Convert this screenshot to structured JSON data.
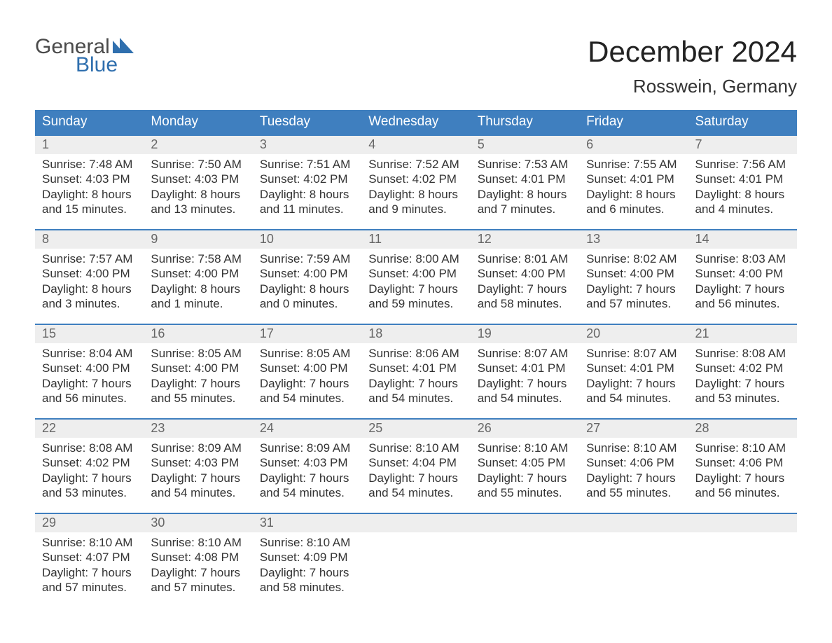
{
  "brand": {
    "word1": "General",
    "word2": "Blue"
  },
  "title": "December 2024",
  "location": "Rosswein, Germany",
  "colors": {
    "header_bg": "#3f7fbf",
    "header_text": "#ffffff",
    "daynum_bg": "#eeeeee",
    "daynum_border": "#3f7fbf",
    "daynum_text": "#666666",
    "body_text": "#333333",
    "page_bg": "#ffffff",
    "brand_blue": "#2f6fae",
    "brand_gray": "#4a4a4a"
  },
  "dayHeaders": [
    "Sunday",
    "Monday",
    "Tuesday",
    "Wednesday",
    "Thursday",
    "Friday",
    "Saturday"
  ],
  "weeks": [
    [
      {
        "num": "1",
        "sunrise": "Sunrise: 7:48 AM",
        "sunset": "Sunset: 4:03 PM",
        "daylight": "Daylight: 8 hours and 15 minutes."
      },
      {
        "num": "2",
        "sunrise": "Sunrise: 7:50 AM",
        "sunset": "Sunset: 4:03 PM",
        "daylight": "Daylight: 8 hours and 13 minutes."
      },
      {
        "num": "3",
        "sunrise": "Sunrise: 7:51 AM",
        "sunset": "Sunset: 4:02 PM",
        "daylight": "Daylight: 8 hours and 11 minutes."
      },
      {
        "num": "4",
        "sunrise": "Sunrise: 7:52 AM",
        "sunset": "Sunset: 4:02 PM",
        "daylight": "Daylight: 8 hours and 9 minutes."
      },
      {
        "num": "5",
        "sunrise": "Sunrise: 7:53 AM",
        "sunset": "Sunset: 4:01 PM",
        "daylight": "Daylight: 8 hours and 7 minutes."
      },
      {
        "num": "6",
        "sunrise": "Sunrise: 7:55 AM",
        "sunset": "Sunset: 4:01 PM",
        "daylight": "Daylight: 8 hours and 6 minutes."
      },
      {
        "num": "7",
        "sunrise": "Sunrise: 7:56 AM",
        "sunset": "Sunset: 4:01 PM",
        "daylight": "Daylight: 8 hours and 4 minutes."
      }
    ],
    [
      {
        "num": "8",
        "sunrise": "Sunrise: 7:57 AM",
        "sunset": "Sunset: 4:00 PM",
        "daylight": "Daylight: 8 hours and 3 minutes."
      },
      {
        "num": "9",
        "sunrise": "Sunrise: 7:58 AM",
        "sunset": "Sunset: 4:00 PM",
        "daylight": "Daylight: 8 hours and 1 minute."
      },
      {
        "num": "10",
        "sunrise": "Sunrise: 7:59 AM",
        "sunset": "Sunset: 4:00 PM",
        "daylight": "Daylight: 8 hours and 0 minutes."
      },
      {
        "num": "11",
        "sunrise": "Sunrise: 8:00 AM",
        "sunset": "Sunset: 4:00 PM",
        "daylight": "Daylight: 7 hours and 59 minutes."
      },
      {
        "num": "12",
        "sunrise": "Sunrise: 8:01 AM",
        "sunset": "Sunset: 4:00 PM",
        "daylight": "Daylight: 7 hours and 58 minutes."
      },
      {
        "num": "13",
        "sunrise": "Sunrise: 8:02 AM",
        "sunset": "Sunset: 4:00 PM",
        "daylight": "Daylight: 7 hours and 57 minutes."
      },
      {
        "num": "14",
        "sunrise": "Sunrise: 8:03 AM",
        "sunset": "Sunset: 4:00 PM",
        "daylight": "Daylight: 7 hours and 56 minutes."
      }
    ],
    [
      {
        "num": "15",
        "sunrise": "Sunrise: 8:04 AM",
        "sunset": "Sunset: 4:00 PM",
        "daylight": "Daylight: 7 hours and 56 minutes."
      },
      {
        "num": "16",
        "sunrise": "Sunrise: 8:05 AM",
        "sunset": "Sunset: 4:00 PM",
        "daylight": "Daylight: 7 hours and 55 minutes."
      },
      {
        "num": "17",
        "sunrise": "Sunrise: 8:05 AM",
        "sunset": "Sunset: 4:00 PM",
        "daylight": "Daylight: 7 hours and 54 minutes."
      },
      {
        "num": "18",
        "sunrise": "Sunrise: 8:06 AM",
        "sunset": "Sunset: 4:01 PM",
        "daylight": "Daylight: 7 hours and 54 minutes."
      },
      {
        "num": "19",
        "sunrise": "Sunrise: 8:07 AM",
        "sunset": "Sunset: 4:01 PM",
        "daylight": "Daylight: 7 hours and 54 minutes."
      },
      {
        "num": "20",
        "sunrise": "Sunrise: 8:07 AM",
        "sunset": "Sunset: 4:01 PM",
        "daylight": "Daylight: 7 hours and 54 minutes."
      },
      {
        "num": "21",
        "sunrise": "Sunrise: 8:08 AM",
        "sunset": "Sunset: 4:02 PM",
        "daylight": "Daylight: 7 hours and 53 minutes."
      }
    ],
    [
      {
        "num": "22",
        "sunrise": "Sunrise: 8:08 AM",
        "sunset": "Sunset: 4:02 PM",
        "daylight": "Daylight: 7 hours and 53 minutes."
      },
      {
        "num": "23",
        "sunrise": "Sunrise: 8:09 AM",
        "sunset": "Sunset: 4:03 PM",
        "daylight": "Daylight: 7 hours and 54 minutes."
      },
      {
        "num": "24",
        "sunrise": "Sunrise: 8:09 AM",
        "sunset": "Sunset: 4:03 PM",
        "daylight": "Daylight: 7 hours and 54 minutes."
      },
      {
        "num": "25",
        "sunrise": "Sunrise: 8:10 AM",
        "sunset": "Sunset: 4:04 PM",
        "daylight": "Daylight: 7 hours and 54 minutes."
      },
      {
        "num": "26",
        "sunrise": "Sunrise: 8:10 AM",
        "sunset": "Sunset: 4:05 PM",
        "daylight": "Daylight: 7 hours and 55 minutes."
      },
      {
        "num": "27",
        "sunrise": "Sunrise: 8:10 AM",
        "sunset": "Sunset: 4:06 PM",
        "daylight": "Daylight: 7 hours and 55 minutes."
      },
      {
        "num": "28",
        "sunrise": "Sunrise: 8:10 AM",
        "sunset": "Sunset: 4:06 PM",
        "daylight": "Daylight: 7 hours and 56 minutes."
      }
    ],
    [
      {
        "num": "29",
        "sunrise": "Sunrise: 8:10 AM",
        "sunset": "Sunset: 4:07 PM",
        "daylight": "Daylight: 7 hours and 57 minutes."
      },
      {
        "num": "30",
        "sunrise": "Sunrise: 8:10 AM",
        "sunset": "Sunset: 4:08 PM",
        "daylight": "Daylight: 7 hours and 57 minutes."
      },
      {
        "num": "31",
        "sunrise": "Sunrise: 8:10 AM",
        "sunset": "Sunset: 4:09 PM",
        "daylight": "Daylight: 7 hours and 58 minutes."
      },
      {
        "num": "",
        "sunrise": "",
        "sunset": "",
        "daylight": ""
      },
      {
        "num": "",
        "sunrise": "",
        "sunset": "",
        "daylight": ""
      },
      {
        "num": "",
        "sunrise": "",
        "sunset": "",
        "daylight": ""
      },
      {
        "num": "",
        "sunrise": "",
        "sunset": "",
        "daylight": ""
      }
    ]
  ]
}
